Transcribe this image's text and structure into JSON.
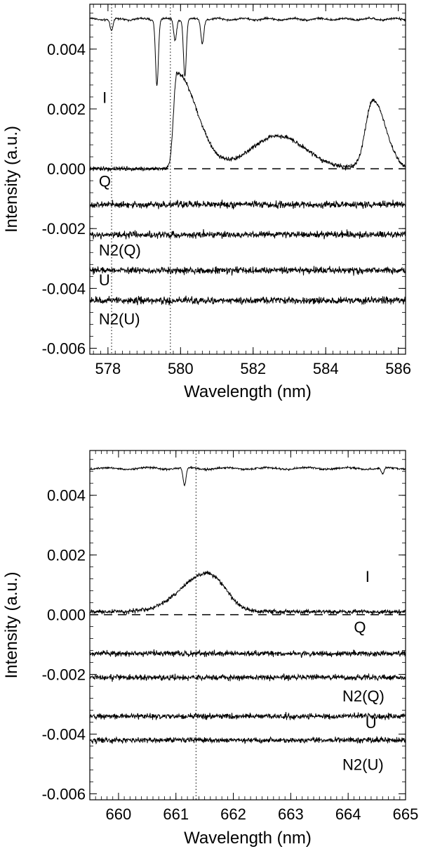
{
  "chart_data": [
    {
      "type": "line",
      "xlabel": "Wavelength (nm)",
      "ylabel": "Intensity (a.u.)",
      "xlim": [
        577.5,
        586.2
      ],
      "ylim": [
        -0.0062,
        0.0055
      ],
      "x_ticks": [
        578,
        580,
        582,
        584,
        586
      ],
      "x_tick_labels": [
        "578",
        "580",
        "582",
        "584",
        "586"
      ],
      "y_ticks": [
        0.004,
        0.002,
        0.0,
        -0.002,
        -0.004,
        -0.006
      ],
      "y_tick_labels": [
        "0.004",
        "0.002",
        "0.000",
        "-0.002",
        "-0.004",
        "-0.006"
      ],
      "grid": false,
      "zero_line": 0.0,
      "marker_lines_x": [
        578.1,
        579.72
      ],
      "reference_spectrum": {
        "baseline": 0.005,
        "dips": [
          [
            578.1,
            0.0004
          ],
          [
            579.35,
            0.0022
          ],
          [
            579.85,
            0.0007
          ],
          [
            580.12,
            0.0019
          ],
          [
            580.6,
            0.0008
          ]
        ]
      },
      "series": [
        {
          "name": "I",
          "offset": 0.0,
          "noise": 7e-05,
          "features": [
            [
              579.9,
              0.0032,
              0.55,
              0.09
            ],
            [
              582.7,
              0.0011,
              0.75,
              0.75
            ],
            [
              585.3,
              0.0023,
              0.35,
              0.2
            ]
          ]
        },
        {
          "name": "Q",
          "offset": -0.0012,
          "noise": 0.00011,
          "features": []
        },
        {
          "name": "N2(Q)",
          "offset": -0.0022,
          "noise": 0.00011,
          "features": []
        },
        {
          "name": "U",
          "offset": -0.0034,
          "noise": 0.00011,
          "features": []
        },
        {
          "name": "N2(U)",
          "offset": -0.0044,
          "noise": 0.00011,
          "features": []
        }
      ],
      "labels": [
        {
          "text": "I",
          "x": 577.85,
          "y": 0.0022
        },
        {
          "text": "Q",
          "x": 577.75,
          "y": -0.0006
        },
        {
          "text": "N2(Q)",
          "x": 577.75,
          "y": -0.0029
        },
        {
          "text": "U",
          "x": 577.75,
          "y": -0.0039
        },
        {
          "text": "N2(U)",
          "x": 577.75,
          "y": -0.0052
        }
      ]
    },
    {
      "type": "line",
      "xlabel": "Wavelength (nm)",
      "ylabel": "Intensity (a.u.)",
      "xlim": [
        659.5,
        665.0
      ],
      "ylim": [
        -0.0062,
        0.0055
      ],
      "x_ticks": [
        660,
        661,
        662,
        663,
        664,
        665
      ],
      "x_tick_labels": [
        "660",
        "661",
        "662",
        "663",
        "664",
        "665"
      ],
      "y_ticks": [
        0.004,
        0.002,
        0.0,
        -0.002,
        -0.004,
        -0.006
      ],
      "y_tick_labels": [
        "0.004",
        "0.002",
        "0.000",
        "-0.002",
        "-0.004",
        "-0.006"
      ],
      "grid": false,
      "zero_line": 0.0,
      "marker_lines_x": [
        661.35
      ],
      "reference_spectrum": {
        "baseline": 0.0049,
        "dips": [
          [
            661.15,
            0.0006
          ],
          [
            664.6,
            0.0002
          ]
        ]
      },
      "series": [
        {
          "name": "I",
          "offset": 0.0001,
          "noise": 7e-05,
          "features": [
            [
              661.55,
              0.0013,
              0.3,
              0.45
            ]
          ]
        },
        {
          "name": "Q",
          "offset": -0.0013,
          "noise": 9e-05,
          "features": []
        },
        {
          "name": "N2(Q)",
          "offset": -0.0021,
          "noise": 9e-05,
          "features": []
        },
        {
          "name": "U",
          "offset": -0.0034,
          "noise": 9e-05,
          "features": []
        },
        {
          "name": "N2(U)",
          "offset": -0.0042,
          "noise": 9e-05,
          "features": []
        }
      ],
      "labels": [
        {
          "text": "I",
          "x": 664.3,
          "y": 0.0011
        },
        {
          "text": "Q",
          "x": 664.1,
          "y": -0.0006
        },
        {
          "text": "N2(Q)",
          "x": 663.9,
          "y": -0.0029
        },
        {
          "text": "U",
          "x": 664.3,
          "y": -0.0038
        },
        {
          "text": "N2(U)",
          "x": 663.9,
          "y": -0.0052
        }
      ]
    }
  ]
}
